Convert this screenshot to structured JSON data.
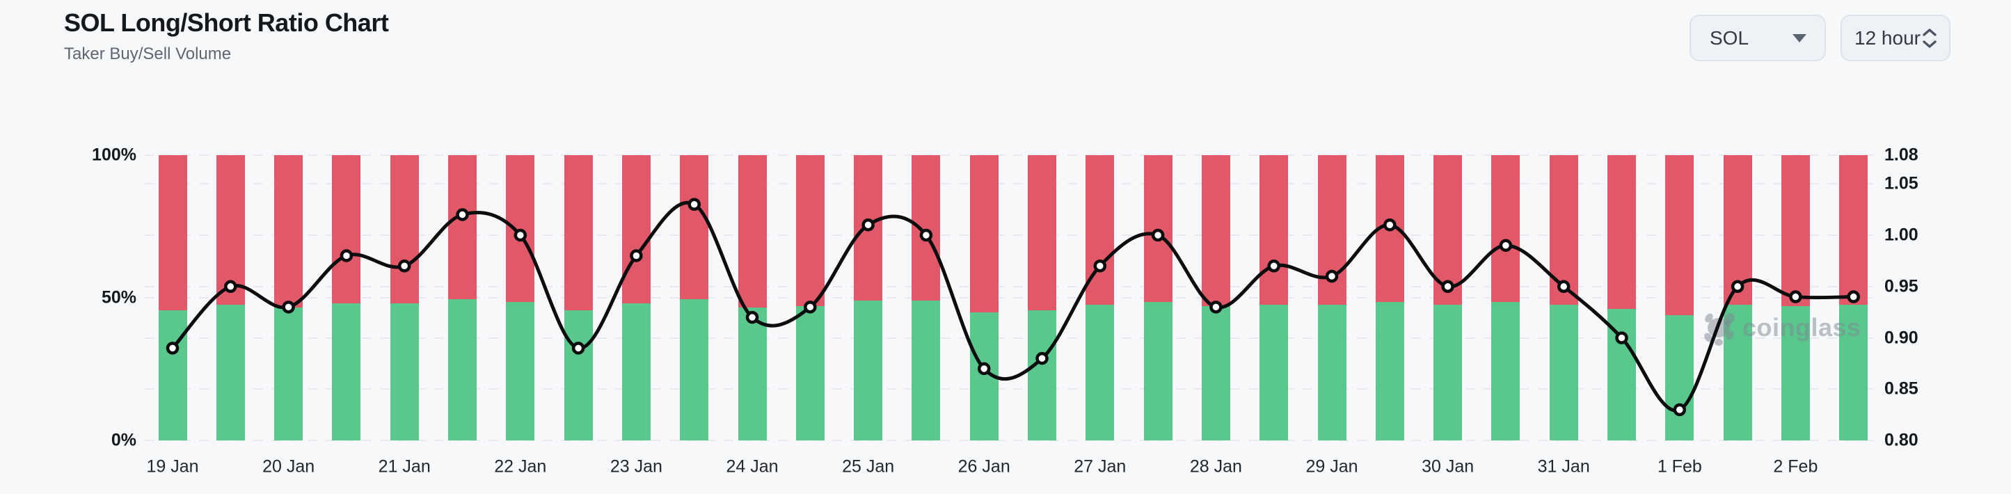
{
  "header": {
    "title": "SOL Long/Short Ratio Chart",
    "subtitle": "Taker Buy/Sell Volume"
  },
  "controls": {
    "symbol": {
      "value": "SOL"
    },
    "interval": {
      "value": "12 hour"
    }
  },
  "watermark": {
    "text": "coinglass"
  },
  "colors": {
    "buy_green": "#5ac88c",
    "sell_red": "#e15968",
    "line": "#0c0d0f",
    "marker_fill": "#ffffff",
    "grid": "#e7e9ed",
    "background": "#f7f8f9"
  },
  "chart_data": {
    "type": "bar",
    "overlay": "line",
    "title": "SOL Long/Short Ratio Chart",
    "subtitle": "Taker Buy/Sell Volume",
    "stacked": true,
    "bars_per_date": 2,
    "categories": [
      "19 Jan",
      "20 Jan",
      "21 Jan",
      "22 Jan",
      "23 Jan",
      "24 Jan",
      "25 Jan",
      "26 Jan",
      "27 Jan",
      "28 Jan",
      "29 Jan",
      "30 Jan",
      "31 Jan",
      "1 Feb",
      "2 Feb"
    ],
    "series": [
      {
        "name": "Taker Buy %",
        "type": "bar",
        "color": "#5ac88c",
        "values": [
          45.5,
          47.5,
          46.5,
          48,
          48,
          49.5,
          48.5,
          45.5,
          48,
          49.5,
          46.5,
          47,
          49,
          49,
          45,
          45.5,
          47.5,
          48.5,
          47,
          47.5,
          47.5,
          48.5,
          47.5,
          48.5,
          47.5,
          46,
          44,
          47.5,
          47,
          47.5
        ]
      },
      {
        "name": "Taker Sell %",
        "type": "bar",
        "color": "#e15968",
        "values": [
          54.5,
          52.5,
          53.5,
          52,
          52,
          50.5,
          51.5,
          54.5,
          52,
          50.5,
          53.5,
          53,
          51,
          51,
          55,
          54.5,
          52.5,
          51.5,
          53,
          52.5,
          52.5,
          51.5,
          52.5,
          51.5,
          52.5,
          54,
          56,
          52.5,
          53,
          52.5
        ]
      },
      {
        "name": "Long/Short Ratio",
        "type": "line",
        "color": "#0c0d0f",
        "values": [
          0.89,
          0.95,
          0.93,
          0.98,
          0.97,
          1.02,
          1.0,
          0.89,
          0.98,
          1.03,
          0.92,
          0.93,
          1.01,
          1.0,
          0.87,
          0.88,
          0.97,
          1.0,
          0.93,
          0.97,
          0.96,
          1.01,
          0.95,
          0.99,
          0.95,
          0.9,
          0.83,
          0.95,
          0.94,
          0.94
        ]
      }
    ],
    "left_axis": {
      "ticks": [
        "100%",
        "50%",
        "0%"
      ],
      "min": 0,
      "max": 100
    },
    "right_axis": {
      "ticks": [
        "1.08",
        "1.05",
        "1.00",
        "0.95",
        "0.90",
        "0.85",
        "0.80"
      ]
    },
    "grid": "dashed-horizontal",
    "legend": "none"
  }
}
